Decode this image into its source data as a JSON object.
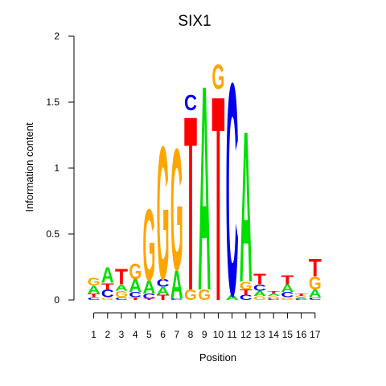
{
  "chart_data": {
    "type": "sequence-logo",
    "title": "SIX1",
    "xlabel": "Position",
    "ylabel": "Information content",
    "ylim": [
      0,
      2
    ],
    "yticks": [
      "0",
      "0.5",
      "1",
      "1.5",
      "2"
    ],
    "positions": [
      "1",
      "2",
      "3",
      "4",
      "5",
      "6",
      "7",
      "8",
      "9",
      "10",
      "11",
      "12",
      "13",
      "14",
      "15",
      "16",
      "17"
    ],
    "colors": {
      "A": "#00DD00",
      "C": "#0000EE",
      "G": "#FFA500",
      "T": "#FF0000"
    },
    "columns": [
      [
        [
          "C",
          0.02
        ],
        [
          "T",
          0.03
        ],
        [
          "A",
          0.06
        ],
        [
          "G",
          0.06
        ]
      ],
      [
        [
          "G",
          0.02
        ],
        [
          "C",
          0.06
        ],
        [
          "T",
          0.05
        ],
        [
          "A",
          0.12
        ]
      ],
      [
        [
          "C",
          0.02
        ],
        [
          "G",
          0.05
        ],
        [
          "A",
          0.05
        ],
        [
          "T",
          0.12
        ]
      ],
      [
        [
          "T",
          0.02
        ],
        [
          "C",
          0.04
        ],
        [
          "A",
          0.1
        ],
        [
          "G",
          0.12
        ]
      ],
      [
        [
          "T",
          0.01
        ],
        [
          "C",
          0.04
        ],
        [
          "A",
          0.1
        ],
        [
          "G",
          0.56
        ]
      ],
      [
        [
          "T",
          0.04
        ],
        [
          "A",
          0.06
        ],
        [
          "C",
          0.06
        ],
        [
          "G",
          1.04
        ]
      ],
      [
        [
          "C",
          0.01
        ],
        [
          "A",
          0.22
        ],
        [
          "G",
          0.95
        ]
      ],
      [
        [
          "G",
          0.08
        ],
        [
          "T",
          1.36
        ],
        [
          "C",
          0.12
        ]
      ],
      [
        [
          "G",
          0.08
        ],
        [
          "A",
          1.6
        ]
      ],
      [
        [
          "T",
          1.6
        ],
        [
          "G",
          0.19
        ]
      ],
      [
        [
          "A",
          0.04
        ],
        [
          "C",
          1.66
        ]
      ],
      [
        [
          "C",
          0.04
        ],
        [
          "T",
          0.04
        ],
        [
          "G",
          0.06
        ],
        [
          "A",
          1.18
        ]
      ],
      [
        [
          "G",
          0.03
        ],
        [
          "A",
          0.04
        ],
        [
          "C",
          0.05
        ],
        [
          "T",
          0.08
        ]
      ],
      [
        [
          "C",
          0.01
        ],
        [
          "G",
          0.02
        ],
        [
          "A",
          0.02
        ],
        [
          "T",
          0.02
        ]
      ],
      [
        [
          "G",
          0.02
        ],
        [
          "C",
          0.04
        ],
        [
          "A",
          0.06
        ],
        [
          "T",
          0.07
        ]
      ],
      [
        [
          "C",
          0.01
        ],
        [
          "A",
          0.01
        ],
        [
          "G",
          0.01
        ],
        [
          "T",
          0.02
        ]
      ],
      [
        [
          "C",
          0.02
        ],
        [
          "A",
          0.06
        ],
        [
          "G",
          0.1
        ],
        [
          "T",
          0.14
        ]
      ]
    ]
  }
}
